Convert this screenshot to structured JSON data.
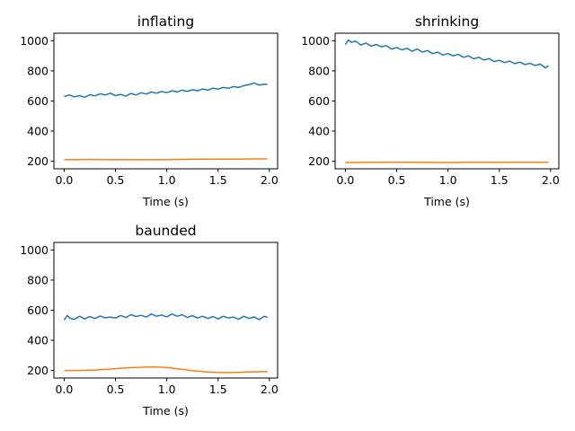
{
  "chart_data": [
    {
      "type": "line",
      "title": "inflating",
      "xlabel": "Time (s)",
      "ylabel": "",
      "xlim": [
        -0.1,
        2.08
      ],
      "ylim": [
        150,
        1050
      ],
      "xticks": [
        0.0,
        0.5,
        1.0,
        1.5,
        2.0
      ],
      "xtick_labels": [
        "0.0",
        "0.5",
        "1.0",
        "1.5",
        "2.0"
      ],
      "yticks": [
        200,
        400,
        600,
        800,
        1000
      ],
      "ytick_labels": [
        "200",
        "400",
        "600",
        "800",
        "1000"
      ],
      "grid": false,
      "series": [
        {
          "color": "#1f77b4",
          "x": [
            0.0,
            0.05,
            0.1,
            0.15,
            0.2,
            0.25,
            0.3,
            0.35,
            0.4,
            0.45,
            0.5,
            0.55,
            0.6,
            0.65,
            0.7,
            0.75,
            0.8,
            0.85,
            0.9,
            0.95,
            1.0,
            1.05,
            1.1,
            1.15,
            1.2,
            1.25,
            1.3,
            1.35,
            1.4,
            1.45,
            1.5,
            1.55,
            1.6,
            1.65,
            1.7,
            1.75,
            1.8,
            1.85,
            1.9,
            1.95,
            1.98
          ],
          "y": [
            630,
            640,
            628,
            636,
            625,
            642,
            634,
            648,
            640,
            652,
            636,
            644,
            632,
            650,
            640,
            655,
            646,
            660,
            652,
            664,
            655,
            668,
            660,
            672,
            664,
            675,
            668,
            680,
            672,
            685,
            680,
            690,
            684,
            696,
            690,
            702,
            708,
            720,
            706,
            712,
            710
          ]
        },
        {
          "color": "#ff7f0e",
          "x": [
            0.0,
            0.25,
            0.5,
            0.75,
            1.0,
            1.25,
            1.5,
            1.75,
            1.98
          ],
          "y": [
            210,
            212,
            211,
            210,
            211,
            213,
            214,
            215,
            216
          ]
        }
      ]
    },
    {
      "type": "line",
      "title": "shrinking",
      "xlabel": "Time (s)",
      "ylabel": "",
      "xlim": [
        -0.1,
        2.08
      ],
      "ylim": [
        150,
        1050
      ],
      "xticks": [
        0.0,
        0.5,
        1.0,
        1.5,
        2.0
      ],
      "xtick_labels": [
        "0.0",
        "0.5",
        "1.0",
        "1.5",
        "2.0"
      ],
      "yticks": [
        200,
        400,
        600,
        800,
        1000
      ],
      "ytick_labels": [
        "200",
        "400",
        "600",
        "800",
        "1000"
      ],
      "grid": false,
      "series": [
        {
          "color": "#1f77b4",
          "x": [
            0.0,
            0.03,
            0.06,
            0.1,
            0.15,
            0.2,
            0.25,
            0.3,
            0.35,
            0.4,
            0.45,
            0.5,
            0.55,
            0.6,
            0.65,
            0.7,
            0.75,
            0.8,
            0.85,
            0.9,
            0.95,
            1.0,
            1.05,
            1.1,
            1.15,
            1.2,
            1.25,
            1.3,
            1.35,
            1.4,
            1.45,
            1.5,
            1.55,
            1.6,
            1.65,
            1.7,
            1.75,
            1.8,
            1.85,
            1.9,
            1.95,
            1.98
          ],
          "y": [
            975,
            1005,
            990,
            998,
            972,
            985,
            965,
            975,
            960,
            968,
            945,
            955,
            940,
            950,
            930,
            945,
            925,
            935,
            915,
            925,
            905,
            915,
            900,
            910,
            890,
            900,
            880,
            890,
            872,
            882,
            862,
            870,
            855,
            865,
            848,
            858,
            842,
            850,
            836,
            845,
            820,
            835
          ]
        },
        {
          "color": "#ff7f0e",
          "x": [
            0.0,
            0.25,
            0.5,
            0.75,
            1.0,
            1.25,
            1.5,
            1.75,
            1.98
          ],
          "y": [
            192,
            193,
            194,
            193,
            192,
            194,
            193,
            194,
            193
          ]
        }
      ]
    },
    {
      "type": "line",
      "title": "baunded",
      "xlabel": "Time (s)",
      "ylabel": "",
      "xlim": [
        -0.1,
        2.08
      ],
      "ylim": [
        150,
        1050
      ],
      "xticks": [
        0.0,
        0.5,
        1.0,
        1.5,
        2.0
      ],
      "xtick_labels": [
        "0.0",
        "0.5",
        "1.0",
        "1.5",
        "2.0"
      ],
      "yticks": [
        200,
        400,
        600,
        800,
        1000
      ],
      "ytick_labels": [
        "200",
        "400",
        "600",
        "800",
        "1000"
      ],
      "grid": false,
      "series": [
        {
          "color": "#1f77b4",
          "x": [
            0.0,
            0.03,
            0.06,
            0.1,
            0.15,
            0.2,
            0.25,
            0.3,
            0.35,
            0.4,
            0.45,
            0.5,
            0.55,
            0.6,
            0.65,
            0.7,
            0.75,
            0.8,
            0.85,
            0.9,
            0.95,
            1.0,
            1.05,
            1.1,
            1.15,
            1.2,
            1.25,
            1.3,
            1.35,
            1.4,
            1.45,
            1.5,
            1.55,
            1.6,
            1.65,
            1.7,
            1.75,
            1.8,
            1.85,
            1.9,
            1.95,
            1.98
          ],
          "y": [
            535,
            565,
            545,
            540,
            560,
            542,
            558,
            545,
            562,
            550,
            555,
            548,
            565,
            552,
            570,
            558,
            566,
            555,
            575,
            560,
            568,
            556,
            575,
            560,
            570,
            552,
            565,
            548,
            560,
            545,
            558,
            542,
            560,
            548,
            555,
            540,
            560,
            545,
            556,
            538,
            560,
            552
          ]
        },
        {
          "color": "#ff7f0e",
          "x": [
            0.0,
            0.1,
            0.2,
            0.3,
            0.4,
            0.5,
            0.6,
            0.7,
            0.8,
            0.9,
            1.0,
            1.1,
            1.2,
            1.3,
            1.4,
            1.5,
            1.6,
            1.7,
            1.8,
            1.9,
            1.98
          ],
          "y": [
            200,
            200,
            201,
            203,
            207,
            212,
            217,
            220,
            223,
            224,
            220,
            212,
            203,
            195,
            190,
            187,
            186,
            188,
            190,
            192,
            193
          ]
        }
      ]
    }
  ]
}
